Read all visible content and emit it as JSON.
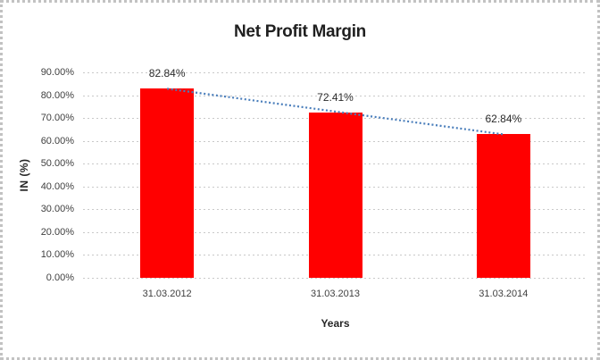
{
  "chart_data": {
    "type": "bar",
    "title": "Net Profit Margin",
    "xlabel": "Years",
    "ylabel": "IN (%)",
    "categories": [
      "31.03.2012",
      "31.03.2013",
      "31.03.2014"
    ],
    "values": [
      82.84,
      72.41,
      62.84
    ],
    "data_labels": [
      "82.84%",
      "72.41%",
      "62.84%"
    ],
    "ylim": [
      0,
      90
    ],
    "ytick_step": 10,
    "ytick_labels": [
      "0.00%",
      "10.00%",
      "20.00%",
      "30.00%",
      "40.00%",
      "50.00%",
      "60.00%",
      "70.00%",
      "80.00%",
      "90.00%"
    ],
    "grid": true,
    "legend_position": "none",
    "trendline": {
      "type": "linear",
      "style": "dotted",
      "from_value": 82.84,
      "to_value": 62.84
    }
  },
  "colors": {
    "bar": "#ff0000",
    "trendline": "#4a7ebb",
    "gridline": "#c9c9c9",
    "tick_text": "#404040",
    "title_text": "#1f1f1f",
    "border": "#c2c2c2"
  }
}
